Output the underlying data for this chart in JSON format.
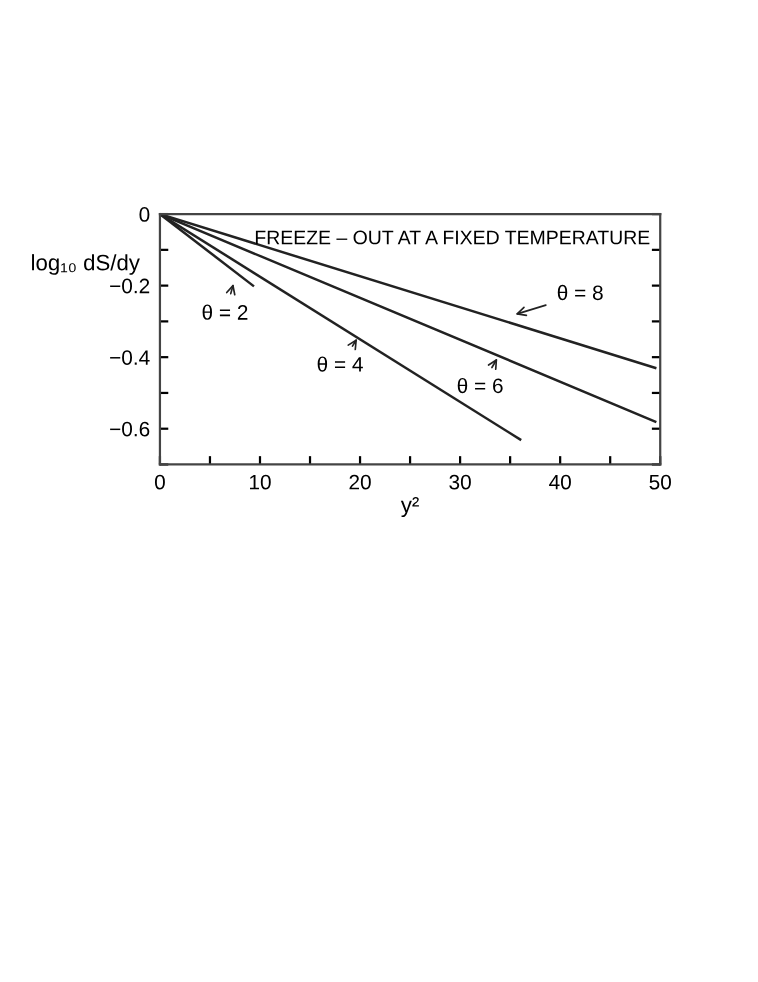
{
  "chart_data": {
    "type": "line",
    "xlabel": "y²",
    "ylabel": "log₁₀ dS/dy",
    "xlim": [
      0,
      50
    ],
    "ylim": [
      -0.7,
      0
    ],
    "xticks": [
      0,
      {
        "value": 5,
        "label": null
      },
      10,
      {
        "value": 15,
        "label": null
      },
      20,
      {
        "value": 25,
        "label": null
      },
      30,
      {
        "value": 35,
        "label": null
      },
      40,
      {
        "value": 45,
        "label": null
      },
      50
    ],
    "yticks": [
      {
        "value": -0.7,
        "label": null
      },
      {
        "value": -0.6,
        "label": "−0.6"
      },
      {
        "value": -0.5,
        "label": null
      },
      {
        "value": -0.4,
        "label": "−0.4"
      },
      {
        "value": -0.3,
        "label": null
      },
      {
        "value": -0.2,
        "label": "−0.2"
      },
      {
        "value": -0.1,
        "label": null
      },
      0
    ],
    "grid": false,
    "legend": false,
    "marker": "none",
    "line_style": "solid",
    "series": [
      {
        "color": "#222222",
        "x": [
          0,
          9.3
        ],
        "values": [
          0,
          -0.2
        ]
      },
      {
        "color": "#222222",
        "x": [
          0,
          36
        ],
        "values": [
          0,
          -0.63
        ]
      },
      {
        "color": "#222222",
        "x": [
          0,
          49.5
        ],
        "values": [
          0,
          -0.58
        ]
      },
      {
        "color": "#222222",
        "x": [
          0,
          49.5
        ],
        "values": [
          0,
          -0.43
        ]
      }
    ],
    "annotations": [
      "FREEZE – OUT AT A FIXED TEMPERATURE",
      {
        "text": "θ = 2",
        "x": 7.5,
        "y": -0.18
      },
      {
        "text": "θ = 4",
        "x": 20,
        "y": -0.335
      },
      {
        "text": "θ = 6",
        "x": 34,
        "y": -0.39
      },
      {
        "text": "θ = 8",
        "x": 35,
        "y": -0.285
      }
    ]
  }
}
